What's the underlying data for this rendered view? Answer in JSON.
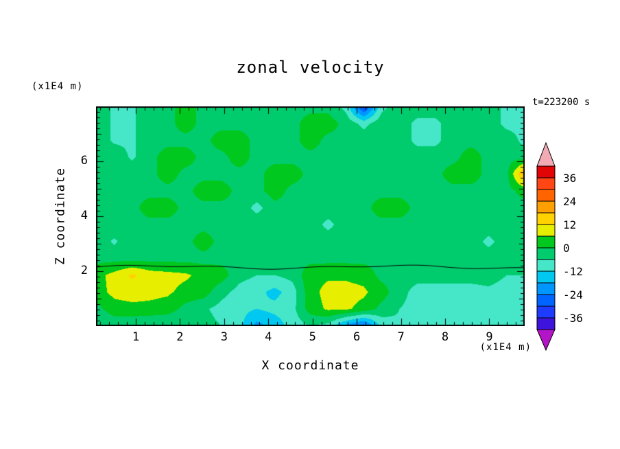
{
  "title": "zonal velocity",
  "timestamp": "t=223200 s",
  "axes": {
    "x_label": "X coordinate",
    "x_unit": "(x1E4 m)",
    "y_label": "Z coordinate",
    "y_unit": "(x1E4 m)",
    "x_ticks": [
      1,
      2,
      3,
      4,
      5,
      6,
      7,
      8,
      9
    ],
    "y_ticks": [
      2,
      4,
      6
    ],
    "x_range": [
      0.1,
      9.8
    ],
    "z_range": [
      0,
      8
    ]
  },
  "colorbar": {
    "labels": [
      36,
      24,
      12,
      0,
      -12,
      -24,
      -36
    ],
    "level_step": 6,
    "levels_min": -42,
    "levels_max": 42,
    "colors_top_to_bottom": [
      "#f2aab4",
      "#e10505",
      "#ff4614",
      "#ff6400",
      "#ffa000",
      "#ffd200",
      "#e8ee00",
      "#00c81e",
      "#00cc6e",
      "#46e6c8",
      "#00c8f0",
      "#0096ff",
      "#0064ff",
      "#1e3cff",
      "#3c14dc",
      "#b414c8"
    ]
  },
  "chart_data": {
    "type": "heatmap",
    "title": "zonal velocity",
    "xlabel": "X coordinate (x1E4 m)",
    "ylabel": "Z coordinate (x1E4 m)",
    "x_range": [
      0.1,
      9.8
    ],
    "z_range": [
      0,
      8
    ],
    "contour_interval": 6,
    "value_range_shown": [
      -36,
      36
    ],
    "annotations": [
      {
        "type": "contour-line",
        "level": 0,
        "z": 2.15
      }
    ],
    "grid_note": "rows top (z=8) to bottom (z=0), columns left (x=0.1) to right (x=9.8), values in same units as colorbar",
    "grid": [
      [
        -2,
        -7,
        -7,
        -2,
        -2,
        3,
        -2,
        -2,
        -2,
        -2,
        -2,
        -2,
        -2,
        -2,
        -8,
        -32,
        -8,
        -2,
        -2,
        -2,
        -2,
        -2,
        -2,
        -8,
        -8
      ],
      [
        -2,
        -7,
        -7,
        -2,
        -2,
        3,
        -2,
        -2,
        -2,
        -2,
        -2,
        -2,
        3,
        3,
        -2,
        -8,
        -2,
        -2,
        -8,
        -8,
        -2,
        -2,
        -2,
        -8,
        -8
      ],
      [
        -2,
        -7,
        -7,
        -2,
        -2,
        -2,
        -2,
        3,
        3,
        -2,
        -2,
        -2,
        3,
        -2,
        -2,
        -2,
        -2,
        -2,
        -8,
        -8,
        -2,
        -2,
        -2,
        -2,
        -8
      ],
      [
        -2,
        -2,
        -7,
        -2,
        3,
        3,
        -2,
        -2,
        3,
        -2,
        -2,
        -2,
        -2,
        -2,
        -2,
        -2,
        -2,
        -2,
        -2,
        -2,
        -2,
        3,
        -2,
        -2,
        -2
      ],
      [
        -2,
        -2,
        -2,
        -2,
        3,
        -2,
        -2,
        -2,
        -2,
        -2,
        3,
        3,
        -2,
        -2,
        -2,
        -2,
        -2,
        -2,
        -2,
        -2,
        3,
        3,
        -2,
        -2,
        20
      ],
      [
        -2,
        -2,
        -2,
        -2,
        -2,
        -2,
        3,
        3,
        -2,
        -2,
        3,
        -2,
        -2,
        -2,
        -2,
        -2,
        -2,
        -2,
        -2,
        -2,
        -2,
        -2,
        -2,
        -2,
        2
      ],
      [
        -2,
        -2,
        -2,
        3,
        3,
        -2,
        -2,
        -2,
        -2,
        -8,
        -2,
        -2,
        -2,
        -2,
        -2,
        -2,
        3,
        3,
        -2,
        -2,
        -2,
        -2,
        -2,
        -2,
        -2
      ],
      [
        -2,
        -2,
        -2,
        -2,
        -2,
        -2,
        -2,
        -2,
        -2,
        -2,
        -2,
        -2,
        -2,
        -8,
        -2,
        -2,
        -2,
        -2,
        -2,
        -2,
        -2,
        -2,
        -2,
        -2,
        -2
      ],
      [
        -2,
        -7,
        -2,
        -2,
        -2,
        -2,
        3,
        -2,
        -2,
        -2,
        -2,
        -2,
        -2,
        -2,
        -2,
        -2,
        -2,
        -2,
        -2,
        -2,
        -2,
        -2,
        -8,
        -2,
        -2
      ],
      [
        -2,
        -2,
        -2,
        -2,
        -2,
        -2,
        -2,
        -2,
        -2,
        -2,
        -2,
        -2,
        -2,
        -2,
        -2,
        -2,
        -2,
        -2,
        -2,
        -2,
        -2,
        -2,
        -2,
        -2,
        -2
      ],
      [
        4,
        8,
        13,
        9,
        8,
        7,
        4,
        3,
        -4,
        -6,
        -6,
        -4,
        4,
        5,
        5,
        4,
        -2,
        -3,
        -4,
        -4,
        -4,
        -4,
        -4,
        -6,
        -6
      ],
      [
        3,
        8,
        9,
        8,
        7,
        4,
        3,
        -4,
        -8,
        -10,
        -14,
        -9,
        4,
        8,
        8,
        7,
        3,
        -4,
        -8,
        -8,
        -8,
        -8,
        -7,
        -8,
        -8
      ],
      [
        -2,
        3,
        4,
        4,
        3,
        -2,
        -5,
        -8,
        -10,
        -12,
        -10,
        -8,
        3,
        7,
        7,
        4,
        -2,
        -6,
        -8,
        -8,
        -8,
        -7,
        -7,
        -7,
        -8
      ],
      [
        -4,
        -4,
        -5,
        -6,
        -6,
        -5,
        -4,
        -6,
        -10,
        -20,
        -16,
        -9,
        -6,
        -8,
        -20,
        -27,
        -10,
        -7,
        -7,
        -7,
        -7,
        -6,
        -6,
        -6,
        -7
      ]
    ]
  }
}
